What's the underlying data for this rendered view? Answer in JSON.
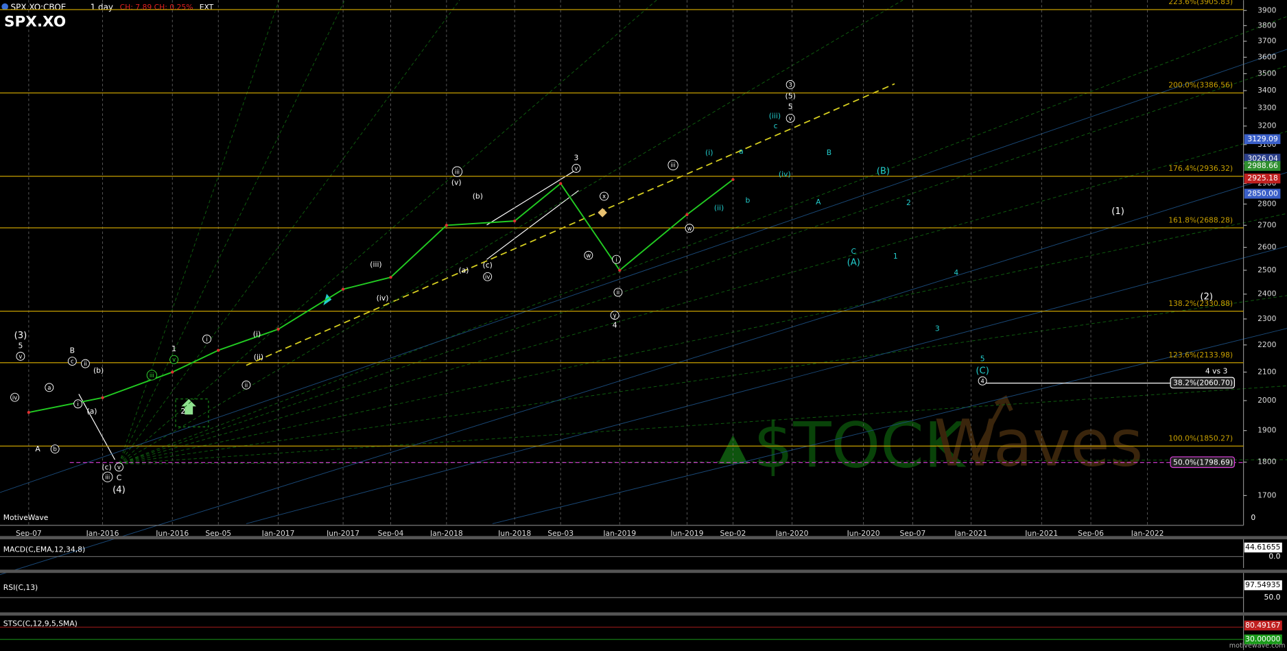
{
  "header": {
    "symbol": "SPX.XO:CBOE",
    "interval": "1 day",
    "change": "CH: 7.89 CH: 0.25%",
    "session": "EXT",
    "title": "SPX.XO",
    "brand": "MotiveWave",
    "watermark_left": "$TOCK",
    "watermark_right": "Waves",
    "site": "motivewave.com"
  },
  "chart_data": {
    "type": "line",
    "categories": [
      "Sep-07",
      "Jan-2016",
      "Jun-2016",
      "Sep-05",
      "Jan-2017",
      "Jun-2017",
      "Sep-04",
      "Jan-2018",
      "Jun-2018",
      "Sep-03",
      "Jan-2019",
      "Jun-2019",
      "Sep-02",
      "Jan-2020",
      "Jun-2020",
      "Sep-07",
      "Jan-2021",
      "Jun-2021",
      "Sep-06",
      "Jan-2022"
    ],
    "series": [
      {
        "name": "SPX.XO",
        "color": "#22cc22",
        "values": [
          1960,
          2010,
          2100,
          2180,
          2260,
          2420,
          2470,
          2700,
          2720,
          2900,
          2500,
          2750,
          2920,
          null,
          null,
          null,
          null,
          null,
          null,
          null
        ]
      }
    ],
    "ylim": [
      1620,
      3970
    ],
    "log_scale": true,
    "yticks": [
      1700,
      1800,
      1900,
      2000,
      2100,
      2200,
      2300,
      2400,
      2500,
      2600,
      2700,
      2800,
      2900,
      3000,
      3100,
      3200,
      3300,
      3400,
      3500,
      3600,
      3700,
      3800,
      3900
    ],
    "axis_floor_label": "0",
    "grid": true,
    "fib_levels": [
      {
        "value": 3905.83,
        "label": "223.6%(3905.83)",
        "color": "#c8a000"
      },
      {
        "value": 3386.56,
        "label": "200.0%(3386.56)",
        "color": "#c8a000"
      },
      {
        "value": 2936.32,
        "label": "176.4%(2936.32)",
        "color": "#c8a000"
      },
      {
        "value": 2688.28,
        "label": "161.8%(2688.28)",
        "color": "#c8a000"
      },
      {
        "value": 2330.88,
        "label": "138.2%(2330.88)",
        "color": "#c8a000"
      },
      {
        "value": 2133.98,
        "label": "123.6%(2133.98)",
        "color": "#c8a000"
      },
      {
        "value": 1850.27,
        "label": "100.0%(1850.27)",
        "color": "#c8a000"
      },
      {
        "value": 1798.69,
        "label": "50.0%(1798.69)",
        "color": "#e040e0"
      },
      {
        "value": 2060.7,
        "label": "38.2%(2060.70)",
        "color": "#ffffff"
      }
    ],
    "price_markers": [
      {
        "value": 3129.09,
        "label": "3129.09",
        "color": "#3a5fc8"
      },
      {
        "value": 3026.04,
        "label": "3026.04",
        "color": "#2b3f8a"
      },
      {
        "value": 2988.66,
        "label": "2988.66",
        "color": "#2f8f2f"
      },
      {
        "value": 2925.18,
        "label": "2925.18",
        "color": "#c02020"
      },
      {
        "value": 2850,
        "label": "2850.00",
        "color": "#3a5fc8"
      }
    ],
    "wave_labels": [
      {
        "text": "(3)",
        "color": "#ffffff",
        "circled": false
      },
      {
        "text": "5",
        "color": "#ffffff",
        "circled": false
      },
      {
        "text": "v",
        "color": "#ffffff",
        "circled": true
      },
      {
        "text": "iv",
        "color": "#ffffff",
        "circled": true
      },
      {
        "text": "a",
        "color": "#ffffff",
        "circled": true
      },
      {
        "text": "A",
        "color": "#ffffff",
        "circled": false
      },
      {
        "text": "b",
        "color": "#ffffff",
        "circled": true
      },
      {
        "text": "B",
        "color": "#ffffff",
        "circled": false
      },
      {
        "text": "c",
        "color": "#ffffff",
        "circled": true
      },
      {
        "text": "ii",
        "color": "#ffffff",
        "circled": true
      },
      {
        "text": "(b)",
        "color": "#ffffff",
        "circled": false
      },
      {
        "text": "i",
        "color": "#ffffff",
        "circled": true
      },
      {
        "text": "(a)",
        "color": "#ffffff",
        "circled": false
      },
      {
        "text": "(c)",
        "color": "#ffffff",
        "circled": false
      },
      {
        "text": "iii",
        "color": "#ffffff",
        "circled": true
      },
      {
        "text": "v",
        "color": "#ffffff",
        "circled": true
      },
      {
        "text": "C",
        "color": "#ffffff",
        "circled": false
      },
      {
        "text": "(4)",
        "color": "#ffffff",
        "circled": false
      },
      {
        "text": "1",
        "color": "#ffffff",
        "circled": false
      },
      {
        "text": "v",
        "color": "#33dd33",
        "circled": true
      },
      {
        "text": "2",
        "color": "#ffffff",
        "circled": false
      },
      {
        "text": "iii",
        "color": "#33dd33",
        "circled": true
      },
      {
        "text": "i",
        "color": "#ffffff",
        "circled": true
      },
      {
        "text": "(i)",
        "color": "#ffffff",
        "circled": false
      },
      {
        "text": "(ii)",
        "color": "#ffffff",
        "circled": false
      },
      {
        "text": "ii",
        "color": "#ffffff",
        "circled": true
      },
      {
        "text": "(iii)",
        "color": "#ffffff",
        "circled": false
      },
      {
        "text": "(iv)",
        "color": "#ffffff",
        "circled": false
      },
      {
        "text": "iii",
        "color": "#ffffff",
        "circled": true
      },
      {
        "text": "(v)",
        "color": "#ffffff",
        "circled": false
      },
      {
        "text": "(b)",
        "color": "#ffffff",
        "circled": false
      },
      {
        "text": "(a)",
        "color": "#ffffff",
        "circled": false
      },
      {
        "text": "(c)",
        "color": "#ffffff",
        "circled": false
      },
      {
        "text": "iv",
        "color": "#ffffff",
        "circled": true
      },
      {
        "text": "3",
        "color": "#ffffff",
        "circled": false
      },
      {
        "text": "v",
        "color": "#ffffff",
        "circled": true
      },
      {
        "text": "x",
        "color": "#ffffff",
        "circled": true
      },
      {
        "text": "w",
        "color": "#ffffff",
        "circled": true
      },
      {
        "text": "i",
        "color": "#ffffff",
        "circled": true
      },
      {
        "text": "ii",
        "color": "#ffffff",
        "circled": true
      },
      {
        "text": "y",
        "color": "#ffffff",
        "circled": true
      },
      {
        "text": "4",
        "color": "#ffffff",
        "circled": false
      },
      {
        "text": "iii",
        "color": "#ffffff",
        "circled": true
      },
      {
        "text": "w",
        "color": "#ffffff",
        "circled": true
      },
      {
        "text": "(i)",
        "color": "#22cccc",
        "circled": false
      },
      {
        "text": "a",
        "color": "#22cccc",
        "circled": false
      },
      {
        "text": "(ii)",
        "color": "#22cccc",
        "circled": false
      },
      {
        "text": "b",
        "color": "#22cccc",
        "circled": false
      },
      {
        "text": "c",
        "color": "#22cccc",
        "circled": false
      },
      {
        "text": "(iii)",
        "color": "#22cccc",
        "circled": false
      },
      {
        "text": "v",
        "color": "#ffffff",
        "circled": true
      },
      {
        "text": "5",
        "color": "#ffffff",
        "circled": false
      },
      {
        "text": "(5)",
        "color": "#ffffff",
        "circled": false
      },
      {
        "text": "3",
        "color": "#ffffff",
        "circled": true
      },
      {
        "text": "(iv)",
        "color": "#22cccc",
        "circled": false
      },
      {
        "text": "B",
        "color": "#22cccc",
        "circled": false
      },
      {
        "text": "(B)",
        "color": "#22cccc",
        "circled": false
      },
      {
        "text": "A",
        "color": "#22cccc",
        "circled": false
      },
      {
        "text": "2",
        "color": "#22cccc",
        "circled": false
      },
      {
        "text": "C",
        "color": "#22cccc",
        "circled": false
      },
      {
        "text": "(A)",
        "color": "#22cccc",
        "circled": false
      },
      {
        "text": "1",
        "color": "#22cccc",
        "circled": false
      },
      {
        "text": "4",
        "color": "#22cccc",
        "circled": false
      },
      {
        "text": "3",
        "color": "#22cccc",
        "circled": false
      },
      {
        "text": "5",
        "color": "#22cccc",
        "circled": false
      },
      {
        "text": "(C)",
        "color": "#22cccc",
        "circled": false
      },
      {
        "text": "4",
        "color": "#ffffff",
        "circled": true
      },
      {
        "text": "4 vs 3",
        "color": "#ffffff",
        "circled": false
      },
      {
        "text": "(1)",
        "color": "#ffffff",
        "circled": false
      },
      {
        "text": "(2)",
        "color": "#ffffff",
        "circled": false
      }
    ]
  },
  "indicators": [
    {
      "name": "MACD(C,EMA,12,34,8)",
      "last": "44.61655",
      "reference": "0.0"
    },
    {
      "name": "RSI(C,13)",
      "last": "97.54935",
      "reference": "50.0"
    },
    {
      "name": "STSC(C,12,9,5,SMA)",
      "last": "80.49167",
      "reference": "30.00000"
    }
  ]
}
